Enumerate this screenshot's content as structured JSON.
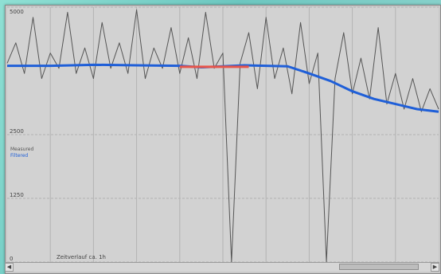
{
  "window": {
    "background": "#c9c9c9",
    "plot_background": "#d2d2d2"
  },
  "legend": {
    "items": [
      {
        "label": "Measured",
        "color": "#555555"
      },
      {
        "label": "Filtered",
        "color": "#1f5fd8"
      }
    ]
  },
  "footer": {
    "caption": "Zeitverlauf ca. 1h",
    "scroll_left_icon": "left-arrow-icon",
    "scroll_right_icon": "right-arrow-icon"
  },
  "chart_data": {
    "type": "line",
    "ylim": [
      0,
      5000
    ],
    "y_ticks": [
      "5000",
      "2500",
      "1250",
      "0"
    ],
    "y_tick_values": [
      5000,
      2500,
      1250,
      0
    ],
    "grid": true,
    "legend_position": "left",
    "colors": {
      "raw": "#555555",
      "smoothed": "#1f5fd8",
      "highlight": "#e8554a"
    },
    "series": [
      {
        "id": "raw",
        "x": [
          0,
          2,
          4,
          6,
          8,
          10,
          12,
          14,
          16,
          18,
          20,
          22,
          24,
          26,
          28,
          30,
          32,
          34,
          36,
          38,
          40,
          42,
          44,
          46,
          48,
          50,
          52,
          54,
          56,
          58,
          60,
          62,
          64,
          66,
          68,
          70,
          72,
          74,
          76,
          78,
          80,
          82,
          84,
          86,
          88,
          90,
          92,
          94,
          96,
          98,
          100
        ],
        "values": [
          3900,
          4300,
          3700,
          4800,
          3600,
          4100,
          3800,
          4900,
          3700,
          4200,
          3600,
          4700,
          3800,
          4300,
          3700,
          4950,
          3600,
          4200,
          3800,
          4600,
          3700,
          4400,
          3600,
          4900,
          3800,
          4100,
          0,
          3900,
          4500,
          3400,
          4800,
          3600,
          4200,
          3300,
          4700,
          3500,
          4100,
          0,
          3600,
          4500,
          3300,
          4000,
          3200,
          4600,
          3100,
          3700,
          3000,
          3600,
          2950,
          3400,
          3000
        ]
      },
      {
        "id": "smoothed",
        "x": [
          0,
          10,
          20,
          30,
          40,
          45,
          50,
          55,
          60,
          65,
          70,
          75,
          80,
          85,
          90,
          95,
          100
        ],
        "values": [
          3850,
          3850,
          3870,
          3860,
          3850,
          3820,
          3840,
          3860,
          3850,
          3840,
          3700,
          3550,
          3350,
          3200,
          3100,
          3000,
          2950
        ]
      },
      {
        "id": "highlight",
        "x_range": [
          40,
          56
        ],
        "value": 3830
      }
    ]
  }
}
